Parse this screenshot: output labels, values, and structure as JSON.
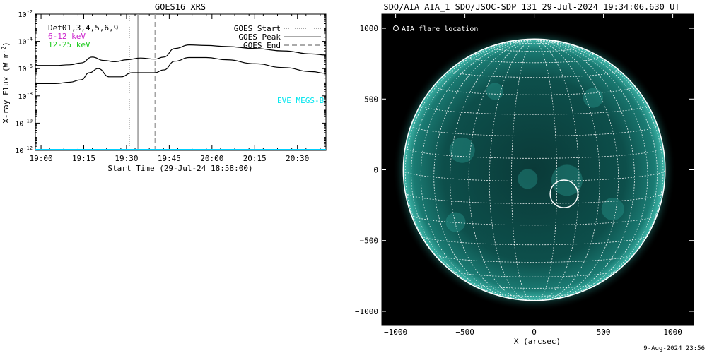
{
  "chart_data": [
    {
      "type": "line",
      "title": "GOES16 XRS",
      "xlabel": "Start Time (29-Jul-24 18:58:00)",
      "ylabel": "X-ray Flux (W m",
      "ylabel_sup": "-2",
      "ylabel_close": ")",
      "yscale": "log",
      "xlim": [
        "18:58",
        "20:40"
      ],
      "ylim": [
        1e-12,
        0.01
      ],
      "x_ticks": [
        "19:00",
        "19:15",
        "19:30",
        "19:45",
        "20:00",
        "20:15",
        "20:30"
      ],
      "y_ticks": [
        {
          "base": "10",
          "exp": "-2",
          "value": 0.01
        },
        {
          "base": "10",
          "exp": "-4",
          "value": 0.0001
        },
        {
          "base": "10",
          "exp": "-6",
          "value": 1e-06
        },
        {
          "base": "10",
          "exp": "-8",
          "value": 1e-08
        },
        {
          "base": "10",
          "exp": "-10",
          "value": 1e-10
        },
        {
          "base": "10",
          "exp": "-12",
          "value": 1e-12
        }
      ],
      "text_legend": [
        {
          "text": "Det01,3,4,5,6,9",
          "color": "#000000"
        },
        {
          "text": "6-12 keV",
          "color": "#cc22cc"
        },
        {
          "text": "12-25 keV",
          "color": "#22cc22"
        }
      ],
      "marker_legend": [
        {
          "text": "GOES Start",
          "style": "dotted"
        },
        {
          "text": "GOES Peak",
          "style": "solid"
        },
        {
          "text": "GOES End",
          "style": "dashed"
        }
      ],
      "markers": [
        {
          "name": "GOES Start",
          "time": "19:31",
          "style": "dotted",
          "color": "#999999"
        },
        {
          "name": "GOES Peak",
          "time": "19:34",
          "style": "solid",
          "color": "#999999"
        },
        {
          "name": "GOES End",
          "time": "19:40",
          "style": "dashed",
          "color": "#999999"
        }
      ],
      "annotation": {
        "text": "EVE MEGS-B",
        "color": "#00e5ee"
      },
      "baseline": {
        "value": 1e-12,
        "color": "#00d0ff"
      },
      "series": [
        {
          "color": "#000000",
          "x": [
            "18:58",
            "19:05",
            "19:10",
            "19:14",
            "19:18",
            "19:22",
            "19:26",
            "19:30",
            "19:35",
            "19:40",
            "19:43",
            "19:47",
            "19:52",
            "19:58",
            "20:05",
            "20:15",
            "20:25",
            "20:35",
            "20:40"
          ],
          "y": [
            1.7e-06,
            1.7e-06,
            1.9e-06,
            2.6e-06,
            7e-06,
            4e-06,
            3.2e-06,
            4.5e-06,
            6e-06,
            5e-06,
            7e-06,
            3e-05,
            5.5e-05,
            5e-05,
            4.2e-05,
            3e-05,
            2e-05,
            1.2e-05,
            1e-05
          ]
        },
        {
          "color": "#000000",
          "x": [
            "18:58",
            "19:05",
            "19:10",
            "19:14",
            "19:17",
            "19:20",
            "19:24",
            "19:28",
            "19:32",
            "19:36",
            "19:40",
            "19:43",
            "19:47",
            "19:52",
            "19:58",
            "20:05",
            "20:15",
            "20:25",
            "20:35",
            "20:40"
          ],
          "y": [
            8e-08,
            8e-08,
            1e-07,
            1.5e-07,
            5e-07,
            1e-06,
            2.5e-07,
            2.5e-07,
            5e-07,
            5e-07,
            5e-07,
            8e-07,
            3.5e-06,
            6.5e-06,
            6.5e-06,
            4.5e-06,
            2.3e-06,
            1.2e-06,
            6e-07,
            4.5e-07
          ]
        }
      ]
    },
    {
      "type": "image",
      "title": "SDO/AIA AIA_1 SDO/JSOC-SDP 131 29-Jul-2024 19:34:06.630 UT",
      "xlabel": "X (arcsec)",
      "xlim": [
        -1100,
        1150
      ],
      "ylim": [
        -1100,
        1100
      ],
      "x_ticks": [
        "-1000",
        "-500",
        "0",
        "500",
        "1000"
      ],
      "y_ticks": [
        "1000",
        "500",
        "0",
        "-500",
        "-1000"
      ],
      "legend": "AIA flare location",
      "flare": {
        "x": 215,
        "y": -170,
        "radius": 100
      },
      "solar_radius": 945,
      "grid_spacing_deg": 10,
      "disk_color": "#0c5a56",
      "grid_color": "#ffffff"
    }
  ],
  "footer": {
    "timestamp": "9-Aug-2024 23:56"
  }
}
